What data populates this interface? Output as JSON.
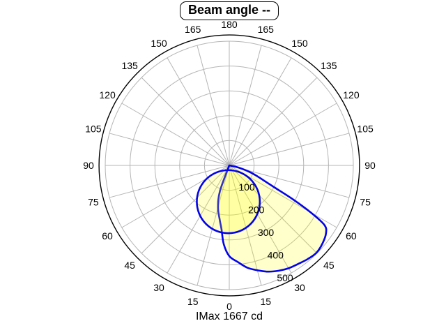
{
  "chart_data": {
    "type": "polar",
    "title": "Beam angle --",
    "footer_label": "IMax 1667 cd",
    "imax_cd": 1667,
    "angle_unit": "degrees",
    "angle_layout": "0 at bottom (nadir), 180 at top, tick labels mirrored on left and right sides every 15 degrees",
    "angle_tick_step_deg": 15,
    "angle_tick_labels": [
      "0",
      "15",
      "30",
      "45",
      "60",
      "75",
      "90",
      "105",
      "120",
      "135",
      "150",
      "165",
      "180"
    ],
    "radial_tick_labels": [
      "100",
      "200",
      "300",
      "400",
      "500"
    ],
    "radial_ring_values": [
      100,
      200,
      300,
      400,
      500
    ],
    "radial_axis_max": 500,
    "outer_border_value": 525,
    "grid": true,
    "legend": "none",
    "colors": {
      "curve": "#0202ee",
      "fill": "rgba(255,255,0,0.2)",
      "grid": "#b5b5b5",
      "outer_circle": "#000000",
      "text": "#000000",
      "background": "#ffffff"
    },
    "series": [
      {
        "name": "beam-lobe-large",
        "description": "large beam lobe; points are [gamma_deg, intensity] with gamma 0 = straight down, positive = right half",
        "points": [
          [
            -25,
            0
          ],
          [
            -20,
            110
          ],
          [
            -15,
            175
          ],
          [
            -10,
            222
          ],
          [
            -7,
            258
          ],
          [
            -4,
            318
          ],
          [
            0,
            365
          ],
          [
            5,
            390
          ],
          [
            10,
            418
          ],
          [
            15,
            437
          ],
          [
            20,
            455
          ],
          [
            25,
            468
          ],
          [
            30,
            478
          ],
          [
            35,
            484
          ],
          [
            40,
            492
          ],
          [
            45,
            497
          ],
          [
            50,
            490
          ],
          [
            55,
            476
          ],
          [
            58,
            452
          ],
          [
            60,
            380
          ],
          [
            62,
            290
          ],
          [
            64,
            205
          ],
          [
            66,
            160
          ],
          [
            69,
            120
          ],
          [
            72,
            88
          ],
          [
            75,
            56
          ],
          [
            78,
            26
          ],
          [
            80,
            0
          ]
        ]
      },
      {
        "name": "beam-lobe-small",
        "description": "near-circular lobe pointing almost straight down, slightly tilted left",
        "circle": {
          "direction_deg": -1.5,
          "center_distance": 146,
          "radius": 127
        },
        "points": [
          [
            -62,
            75
          ],
          [
            -57,
            120
          ],
          [
            -47,
            175
          ],
          [
            -32,
            230
          ],
          [
            -17,
            262
          ],
          [
            -2,
            273
          ],
          [
            14,
            262
          ],
          [
            29,
            230
          ],
          [
            44,
            177
          ],
          [
            54,
            126
          ],
          [
            58,
            85
          ],
          [
            59,
            40
          ]
        ]
      }
    ]
  }
}
